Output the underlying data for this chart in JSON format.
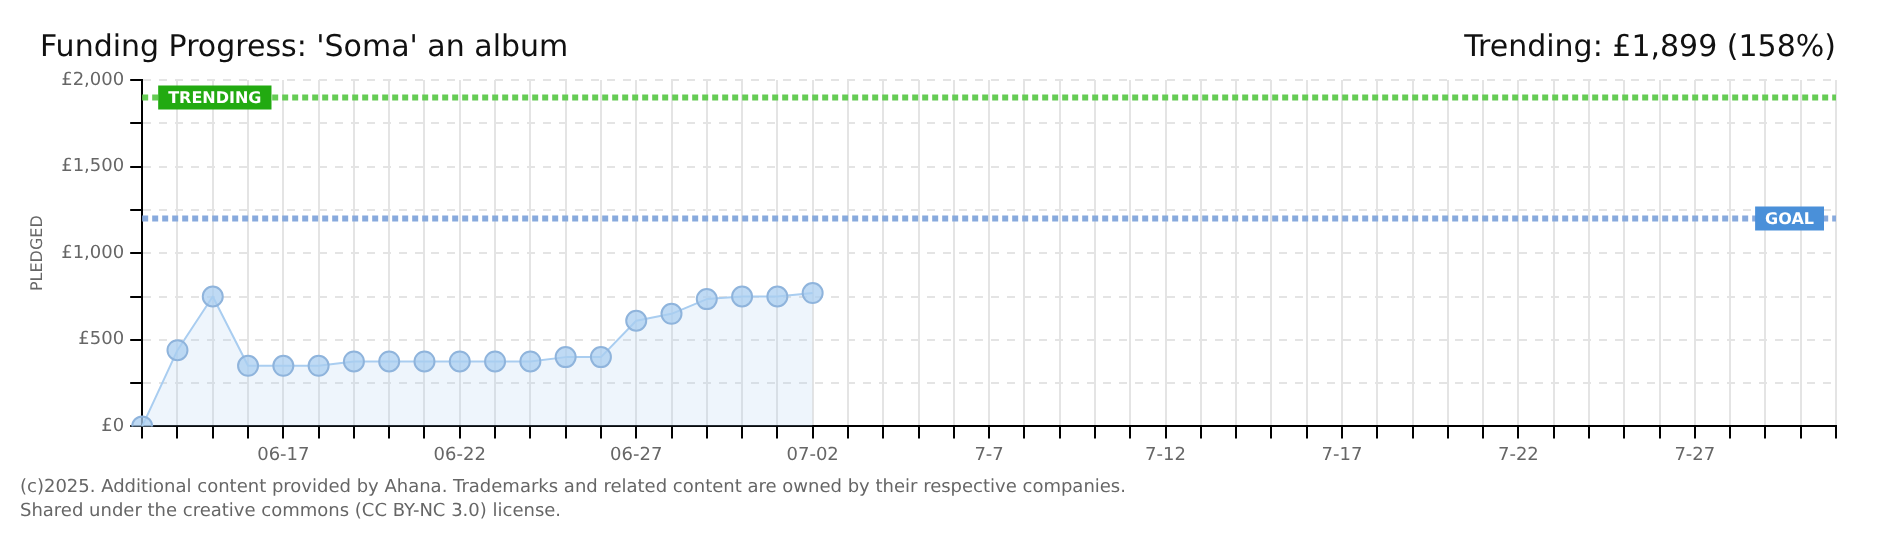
{
  "chart_data": {
    "type": "area",
    "title": "Funding Progress: 'Soma' an album",
    "subtitle": "Trending: £1,899 (158%)",
    "ylabel": "PLEDGED",
    "annotations": [
      "(c)2025. Additional content provided by Ahana. Trademarks and related content are owned by their respective companies.",
      "Shared under the creative commons (CC BY-NC 3.0) license."
    ],
    "categories": [
      null,
      null,
      null,
      null,
      "06-17",
      null,
      null,
      null,
      null,
      "06-22",
      null,
      null,
      null,
      null,
      "06-27",
      null,
      null,
      null,
      null,
      "07-02",
      null,
      null,
      null,
      null,
      "7-7",
      null,
      null,
      null,
      null,
      "7-12",
      null,
      null,
      null,
      null,
      "7-17",
      null,
      null,
      null,
      null,
      "7-22",
      null,
      null,
      null,
      null,
      "7-27",
      null,
      null,
      null,
      null
    ],
    "series": [
      {
        "color": "#a9cdf0",
        "values": [
          0,
          440,
          750,
          350,
          350,
          350,
          375,
          375,
          375,
          375,
          375,
          375,
          400,
          400,
          610,
          650,
          735,
          750,
          750,
          770,
          null,
          null,
          null,
          null,
          null,
          null,
          null,
          null,
          null,
          null,
          null,
          null,
          null,
          null,
          null,
          null,
          null,
          null,
          null,
          null,
          null,
          null,
          null,
          null,
          null,
          null,
          null,
          null,
          null
        ]
      }
    ],
    "ylim": [
      0,
      2000
    ],
    "yticks": [
      {
        "value": 0,
        "label": "£0"
      },
      {
        "value": 250,
        "label": null
      },
      {
        "value": 500,
        "label": "£500"
      },
      {
        "value": 750,
        "label": null
      },
      {
        "value": 1000,
        "label": "£1,000"
      },
      {
        "value": 1250,
        "label": null
      },
      {
        "value": 1500,
        "label": "£1,500"
      },
      {
        "value": 1750,
        "label": null
      },
      {
        "value": 2000,
        "label": "£2,000"
      }
    ],
    "grid": true,
    "marker": "circle",
    "line_style": "solid",
    "ref_lines": [
      {
        "axis": "y",
        "value": 1899,
        "label": "TRENDING",
        "color": "#66cc55"
      },
      {
        "axis": "y",
        "value": 1200,
        "label": "GOAL",
        "color": "#88aadd"
      }
    ]
  }
}
